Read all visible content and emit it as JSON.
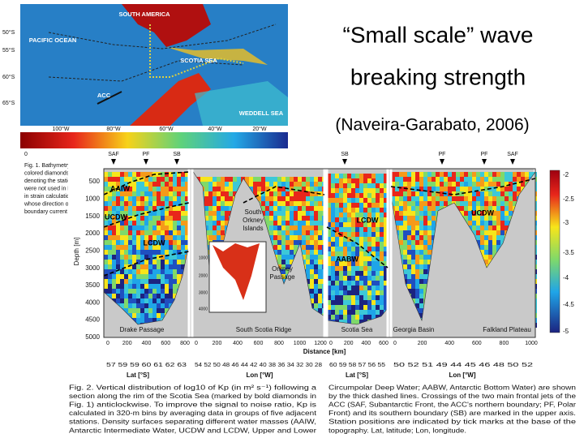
{
  "slide": {
    "title_lines": [
      "“Small scale” wave",
      "breaking strength"
    ],
    "citation": "(Naveira-Garabato, 2006)"
  },
  "map": {
    "labels": [
      "SOUTH AMERICA",
      "PACIFIC OCEAN",
      "SCOTIA SEA",
      "ACC",
      "WEDDELL SEA"
    ],
    "lat_labels": [
      "50°S",
      "55°S",
      "60°S",
      "65°S"
    ],
    "lon_labels": [
      "100°W",
      "80°W",
      "60°W",
      "40°W",
      "20°W"
    ],
    "colorbar_labels": [
      "0"
    ]
  },
  "side_caption": [
    "Fig. 1. Bathymetry",
    "colored diamonds.",
    "denoting the statio",
    "were not used in Fi",
    "in strain calculation",
    "whose direction of t",
    "boundary current t"
  ],
  "figure": {
    "fronts": [
      "SAF",
      "PF",
      "SB",
      "SB",
      "PF",
      "PF",
      "SAF"
    ],
    "depth_label": "Depth [m]",
    "depth_ticks": [
      "500",
      "1000",
      "1500",
      "2000",
      "2500",
      "3000",
      "3500",
      "4000",
      "4500",
      "5000"
    ],
    "water_masses": [
      "AAIW",
      "UCDW",
      "LCDW",
      "LCDW",
      "AABW",
      "UCDW"
    ],
    "places": [
      "South",
      "Orkney",
      "Islands",
      "Orkney",
      "Passage"
    ],
    "regions": [
      "Drake Passage",
      "South Scotia Ridge",
      "Scotia Sea",
      "Georgia Basin",
      "Falkland Plateau"
    ],
    "inset_ticks": [
      "1000",
      "2000",
      "3000",
      "4000"
    ],
    "distance_ticks": [
      [
        "0",
        "200",
        "400",
        "600",
        "800"
      ],
      [
        "0",
        "200",
        "400",
        "600",
        "800",
        "1000",
        "1200"
      ],
      [
        "0",
        "200",
        "400",
        "600"
      ],
      [
        "0",
        "200",
        "400",
        "600",
        "800",
        "1000"
      ]
    ],
    "distance_label": "Distance [km]",
    "coordinate_ticks": [
      "57 59 59 60 61 62 63",
      "54 52 50 48 46 44 42 40 38 36 34 32 30 28",
      "60 59 58 57 56 55",
      "50 52 51 49 44 45 46 48 50 52"
    ],
    "axis_labels": [
      "Lat [°S]",
      "Lon [°W]",
      "Lat [°S]",
      "Lon [°W]"
    ],
    "colorbar_ticks": [
      "-2",
      "-2.5",
      "-3",
      "-3.5",
      "-4",
      "-4.5",
      "-5"
    ]
  },
  "caption": {
    "left": [
      "Fig. 2. Vertical distribution of log10 of Kp (in m² s⁻¹) following a",
      "section along the rim of the Scotia Sea (marked by bold diamonds in",
      "Fig. 1) anticlockwise. To improve the signal to noise ratio, Kp is",
      "calculated in 320-m bins by averaging data in groups of five adjacent",
      "stations. Density surfaces separating different water masses (AAIW,",
      "Antarctic Intermediate Water, UCDW and LCDW, Upper and Lower"
    ],
    "right": [
      "Circumpolar Deep Water; AABW, Antarctic Bottom Water) are shown",
      "by the thick dashed lines. Crossings of the two main frontal jets of the",
      "ACC (SAF, Subantarctic Front, the ACC's northern boundary; PF, Polar",
      "Front) and its southern boundary (SB) are marked in the upper axis.",
      "Station positions are indicated by tick marks at the base of the",
      "topography. Lat, latitude; Lon, longitude."
    ]
  }
}
